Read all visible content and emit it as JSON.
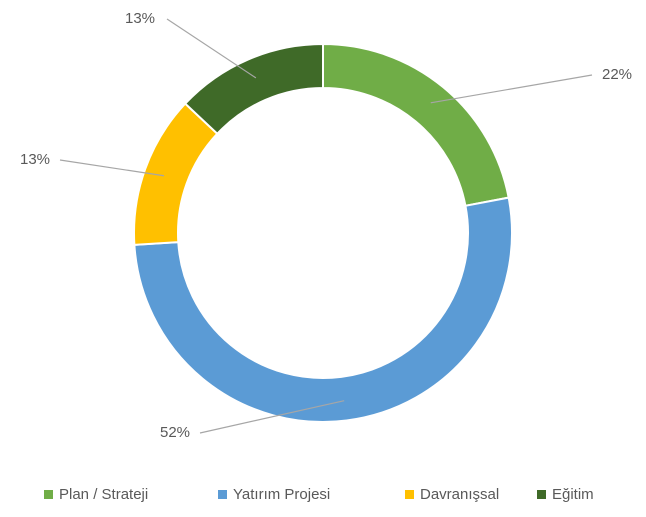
{
  "chart_data": {
    "type": "donut",
    "categories": [
      "Plan / Strateji",
      "Yatırım Projesi",
      "Davranışsal",
      "Eğitim"
    ],
    "values": [
      22,
      52,
      13,
      13
    ],
    "value_labels": [
      "22%",
      "52%",
      "13%",
      "13%"
    ],
    "colors": [
      "#70ad47",
      "#5b9bd5",
      "#ffc000",
      "#3f6a28"
    ],
    "legend": "bottom"
  }
}
